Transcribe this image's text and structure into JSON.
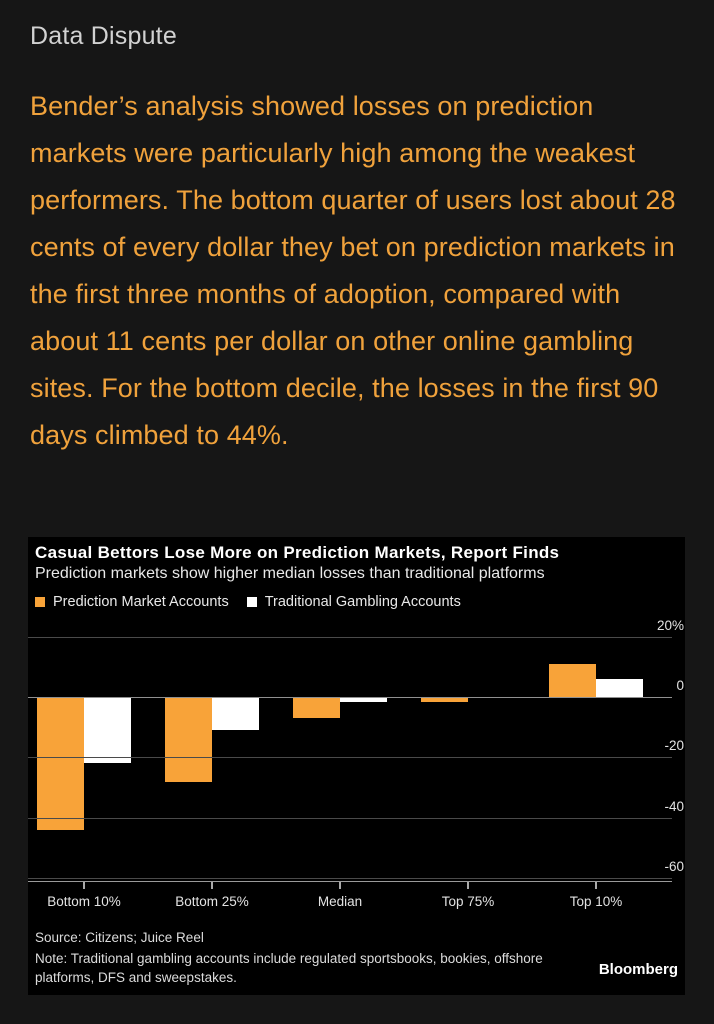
{
  "article": {
    "heading": "Data Dispute",
    "paragraph": "Bender’s analysis showed losses on prediction markets were particularly high among the weakest performers. The bottom quarter of users lost about 28 cents of every dollar they bet on prediction markets in the first three months of adoption, compared with about 11 cents per dollar on other online gambling sites. For the bottom decile, the losses in the first 90 days climbed to 44%."
  },
  "colors": {
    "page_bg": "#161616",
    "chart_bg": "#000000",
    "heading_text": "#d2d2d2",
    "body_text": "#f0a23c",
    "orange_series": "#f8a339",
    "white_series": "#ffffff",
    "gridline": "#4a4a4a",
    "zero_line": "#909090",
    "axis_line": "#9a9a9a"
  },
  "chart": {
    "title": "Casual Bettors Lose More on Prediction Markets, Report Finds",
    "subtitle": "Prediction markets show higher median losses than traditional platforms",
    "legend": [
      {
        "label": "Prediction Market Accounts",
        "color": "#f8a339"
      },
      {
        "label": "Traditional Gambling Accounts",
        "color": "#ffffff"
      }
    ],
    "source": "Source: Citizens; Juice Reel",
    "note": "Note: Traditional gambling accounts include regulated sportsbooks, bookies, offshore platforms, DFS and sweepstakes.",
    "brand": "Bloomberg"
  },
  "chart_data": {
    "type": "bar",
    "categories": [
      "Bottom 10%",
      "Bottom 25%",
      "Median",
      "Top 75%",
      "Top 10%"
    ],
    "series": [
      {
        "name": "Prediction Market Accounts",
        "color": "#f8a339",
        "values": [
          -44,
          -28,
          -7,
          -1.5,
          11
        ]
      },
      {
        "name": "Traditional Gambling Accounts",
        "color": "#ffffff",
        "values": [
          -22,
          -11,
          -1.5,
          0,
          6
        ]
      }
    ],
    "title": "Casual Bettors Lose More on Prediction Markets, Report Finds",
    "subtitle": "Prediction markets show higher median losses than traditional platforms",
    "xlabel": "",
    "ylabel": "",
    "ylim": [
      -60,
      20
    ],
    "yticks": [
      20,
      0,
      -20,
      -40,
      -60
    ],
    "ytick_labels": [
      "20%",
      "0",
      "-20",
      "-40",
      "-60"
    ],
    "grid": true,
    "legend_position": "top-left",
    "axis_side": "right"
  }
}
